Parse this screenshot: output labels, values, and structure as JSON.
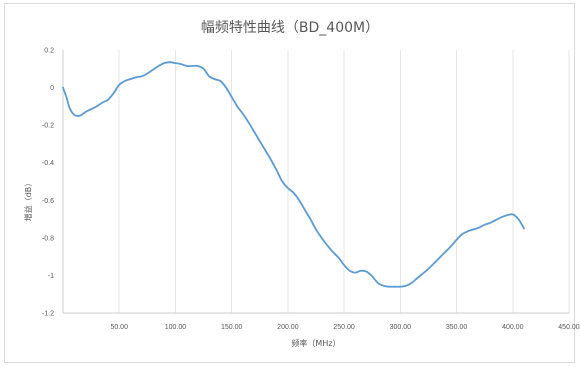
{
  "chart_data": {
    "type": "line",
    "title": "幅频特性曲线（BD_400M）",
    "xlabel": "频率（MHz）",
    "ylabel": "增益（dB）",
    "xlim": [
      0,
      450
    ],
    "ylim": [
      -1.2,
      0.2
    ],
    "x_ticks": [
      "50.00",
      "100.00",
      "150.00",
      "200.00",
      "250.00",
      "300.00",
      "350.00",
      "400.00",
      "450.00"
    ],
    "y_ticks": [
      "0.2",
      "0",
      "-0.2",
      "-0.4",
      "-0.6",
      "-0.8",
      "-1",
      "-1.2"
    ],
    "grid": "vertical",
    "line_color": "#5b9bd5",
    "series": [
      {
        "x": [
          0,
          3,
          6,
          10,
          15,
          20,
          25,
          30,
          35,
          40,
          45,
          50,
          55,
          60,
          65,
          70,
          75,
          80,
          85,
          90,
          95,
          100,
          105,
          110,
          115,
          120,
          125,
          130,
          135,
          140,
          145,
          150,
          155,
          160,
          165,
          170,
          175,
          180,
          185,
          190,
          195,
          200,
          205,
          210,
          215,
          220,
          225,
          230,
          235,
          240,
          245,
          250,
          255,
          260,
          265,
          270,
          275,
          280,
          285,
          290,
          295,
          300,
          305,
          310,
          315,
          320,
          325,
          330,
          335,
          340,
          345,
          350,
          355,
          360,
          365,
          370,
          375,
          380,
          385,
          390,
          395,
          400,
          405,
          410
        ],
        "y": [
          0.0,
          -0.05,
          -0.11,
          -0.145,
          -0.15,
          -0.13,
          -0.115,
          -0.1,
          -0.08,
          -0.065,
          -0.03,
          0.015,
          0.035,
          0.045,
          0.055,
          0.06,
          0.075,
          0.095,
          0.115,
          0.13,
          0.135,
          0.13,
          0.125,
          0.115,
          0.115,
          0.115,
          0.1,
          0.06,
          0.045,
          0.035,
          0.0,
          -0.05,
          -0.1,
          -0.14,
          -0.185,
          -0.235,
          -0.285,
          -0.335,
          -0.385,
          -0.44,
          -0.5,
          -0.535,
          -0.56,
          -0.6,
          -0.65,
          -0.7,
          -0.755,
          -0.8,
          -0.84,
          -0.875,
          -0.905,
          -0.945,
          -0.975,
          -0.985,
          -0.975,
          -0.98,
          -1.005,
          -1.04,
          -1.055,
          -1.06,
          -1.06,
          -1.06,
          -1.055,
          -1.04,
          -1.015,
          -0.99,
          -0.965,
          -0.935,
          -0.905,
          -0.875,
          -0.845,
          -0.81,
          -0.78,
          -0.765,
          -0.755,
          -0.745,
          -0.73,
          -0.72,
          -0.705,
          -0.69,
          -0.68,
          -0.675,
          -0.7,
          -0.75
        ]
      }
    ]
  }
}
